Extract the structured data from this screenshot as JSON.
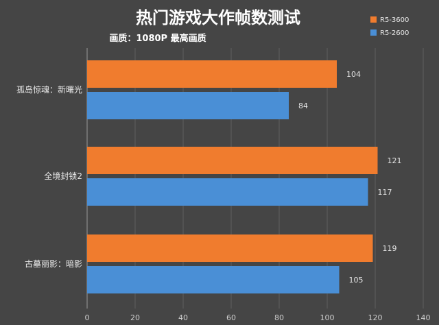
{
  "chart_data": {
    "type": "bar",
    "orientation": "horizontal",
    "title": "热门游戏大作帧数测试",
    "subtitle": "画质：1080P 最高画质",
    "categories": [
      "孤岛惊魂：新曙光",
      "全境封锁2",
      "古墓丽影：暗影"
    ],
    "series": [
      {
        "name": "R5-3600",
        "values": [
          104,
          121,
          119
        ],
        "color": "#F07C2E"
      },
      {
        "name": "R5-2600",
        "values": [
          84,
          117,
          105
        ],
        "color": "#4A8FD6"
      }
    ],
    "xlim": [
      0,
      140
    ],
    "x_ticks": [
      "0",
      "20",
      "40",
      "60",
      "80",
      "100",
      "120",
      "140"
    ],
    "grid": true,
    "legend_position": "top-right",
    "background": "#454545"
  }
}
